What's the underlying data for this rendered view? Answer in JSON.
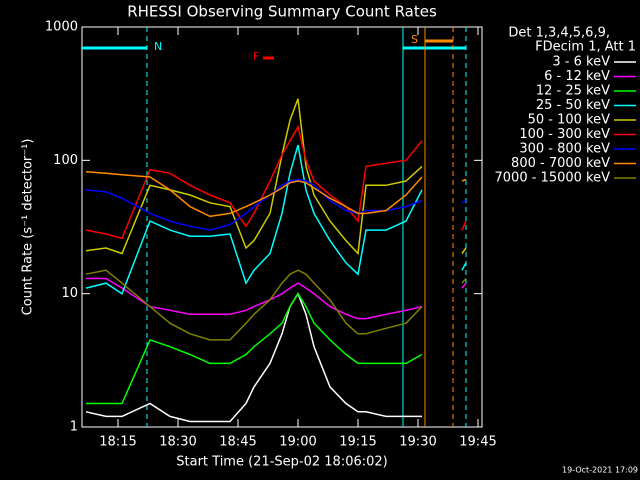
{
  "chart_data": {
    "type": "line",
    "title": "RHESSI Observing Summary Count Rates",
    "x_label": "Start Time (21-Sep-02 18:06:02)",
    "y_label": "Count Rate (s⁻¹ detector⁻¹)",
    "legend_title": [
      "Det 1,3,4,5,6,9,",
      "FDecim 1, Att 1"
    ],
    "annotations": {
      "night": "N",
      "flare": "F",
      "saa": "S"
    },
    "timestamp": "19-Oct-2021 17:09",
    "log_scale": true,
    "xlim": [
      "18:06",
      "19:46"
    ],
    "xticks": [
      "18:15",
      "18:30",
      "18:45",
      "19:00",
      "19:15",
      "19:30",
      "19:45"
    ],
    "ylim": [
      1,
      1000
    ],
    "yticks": [
      1,
      10,
      100,
      1000
    ],
    "x": [
      "18:07",
      "18:12",
      "18:16",
      "18:23",
      "18:28",
      "18:33",
      "18:38",
      "18:43",
      "18:47",
      "18:49",
      "18:53",
      "18:56",
      "18:58",
      "19:00",
      "19:02",
      "19:04",
      "19:08",
      "19:12",
      "19:15",
      "19:17",
      "19:22",
      "19:27",
      "19:31",
      "19:36",
      "19:41",
      "19:42"
    ],
    "series": [
      {
        "name": "3 - 6 keV",
        "color": "#ffffff",
        "values": [
          1.3,
          1.2,
          1.2,
          1.5,
          1.2,
          1.1,
          1.1,
          1.1,
          1.5,
          2,
          3,
          5,
          8,
          10,
          7,
          4,
          2,
          1.5,
          1.3,
          1.3,
          1.2,
          1.2,
          1.2,
          null,
          null,
          null
        ]
      },
      {
        "name": "6 - 12 keV",
        "color": "#ff00ff",
        "values": [
          13,
          13,
          11,
          8,
          7.5,
          7,
          7,
          7,
          7.5,
          8,
          9,
          10,
          11,
          12,
          11,
          10,
          8,
          7,
          6.5,
          6.5,
          7,
          7.5,
          8,
          null,
          11,
          12
        ]
      },
      {
        "name": "12 - 25 keV",
        "color": "#00ff00",
        "values": [
          1.5,
          1.5,
          1.5,
          4.5,
          4,
          3.5,
          3,
          3,
          3.5,
          4,
          5,
          6,
          8,
          10,
          8,
          6,
          4.5,
          3.5,
          3,
          3,
          3,
          3,
          3.5,
          null,
          null,
          null
        ]
      },
      {
        "name": "25 - 50 keV",
        "color": "#00ffff",
        "values": [
          11,
          12,
          10,
          35,
          30,
          27,
          27,
          28,
          12,
          15,
          20,
          40,
          80,
          130,
          60,
          40,
          25,
          17,
          14,
          30,
          30,
          35,
          60,
          null,
          15,
          17
        ]
      },
      {
        "name": "50 - 100 keV",
        "color": "#cccc00",
        "values": [
          21,
          22,
          20,
          65,
          60,
          55,
          48,
          45,
          22,
          25,
          40,
          110,
          200,
          290,
          90,
          55,
          35,
          25,
          20,
          65,
          65,
          70,
          90,
          null,
          20,
          22
        ]
      },
      {
        "name": "100 - 300 keV",
        "color": "#ff0000",
        "values": [
          30,
          28,
          26,
          85,
          80,
          65,
          55,
          48,
          32,
          40,
          70,
          110,
          140,
          178,
          100,
          70,
          55,
          45,
          35,
          90,
          95,
          100,
          140,
          null,
          30,
          35
        ]
      },
      {
        "name": "300 - 800 keV",
        "color": "#0000ff",
        "values": [
          60,
          58,
          52,
          40,
          35,
          32,
          30,
          33,
          40,
          45,
          55,
          65,
          70,
          72,
          70,
          65,
          50,
          42,
          40,
          42,
          42,
          45,
          50,
          null,
          48,
          50
        ]
      },
      {
        "name": "800 - 7000 keV",
        "color": "#ff8c00",
        "values": [
          82,
          80,
          78,
          75,
          60,
          45,
          38,
          40,
          45,
          48,
          55,
          62,
          68,
          70,
          68,
          62,
          52,
          45,
          40,
          40,
          42,
          55,
          75,
          null,
          70,
          72
        ]
      },
      {
        "name": "7000 - 15000 keV",
        "color": "#808000",
        "values": [
          14,
          15,
          12,
          8,
          6,
          5,
          4.5,
          4.5,
          6,
          7,
          9,
          12,
          14,
          15,
          14,
          12,
          9,
          6,
          5,
          5,
          5.5,
          6,
          8,
          null,
          12,
          13
        ]
      }
    ]
  }
}
